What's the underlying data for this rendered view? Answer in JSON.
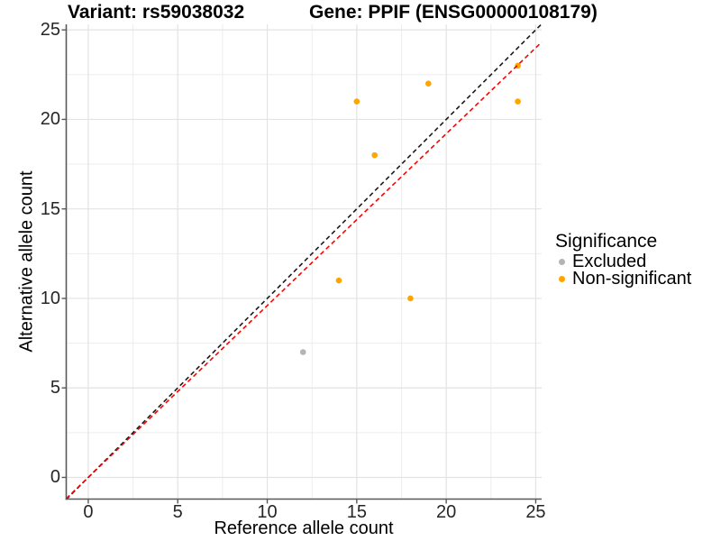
{
  "figure": {
    "title_left": "Variant: rs59038032",
    "title_right": "Gene: PPIF (ENSG00000108179)"
  },
  "chart_data": {
    "type": "scatter",
    "xlabel": "Reference allele count",
    "ylabel": "Alternative allele count",
    "xlim": [
      -1.23,
      25.33
    ],
    "ylim": [
      -1.21,
      25.31
    ],
    "x_ticks": [
      0,
      5,
      10,
      15,
      20,
      25
    ],
    "y_ticks": [
      0,
      5,
      10,
      15,
      20,
      25
    ],
    "minor_ticks": [
      2.5,
      7.5,
      12.5,
      17.5,
      22.5
    ],
    "grid": true,
    "series": [
      {
        "name": "Excluded",
        "color": "#B4B4B4",
        "points": [
          {
            "x": 12,
            "y": 7
          }
        ]
      },
      {
        "name": "Non-significant",
        "color": "#FFA500",
        "points": [
          {
            "x": 14,
            "y": 11
          },
          {
            "x": 15,
            "y": 21
          },
          {
            "x": 16,
            "y": 18
          },
          {
            "x": 18,
            "y": 10
          },
          {
            "x": 19,
            "y": 22
          },
          {
            "x": 24,
            "y": 21
          },
          {
            "x": 24,
            "y": 23
          }
        ]
      }
    ],
    "lines": [
      {
        "name": "identity-line",
        "slope": 1,
        "intercept": 0,
        "color": "#1A1A1A",
        "dash": "5 3.5"
      },
      {
        "name": "fit-line",
        "slope": 0.96,
        "intercept": 0,
        "color": "#FF0000",
        "dash": "5 3.5"
      }
    ],
    "legend": {
      "title": "Significance",
      "position": "right",
      "items": [
        {
          "label": "Excluded",
          "color": "#B4B4B4"
        },
        {
          "label": "Non-significant",
          "color": "#FFA500"
        }
      ]
    },
    "colors": {
      "grid_major": "#E3E3E3",
      "grid_minor": "#EDEDED",
      "axis": "#595959",
      "tick_label": "#262626"
    }
  }
}
